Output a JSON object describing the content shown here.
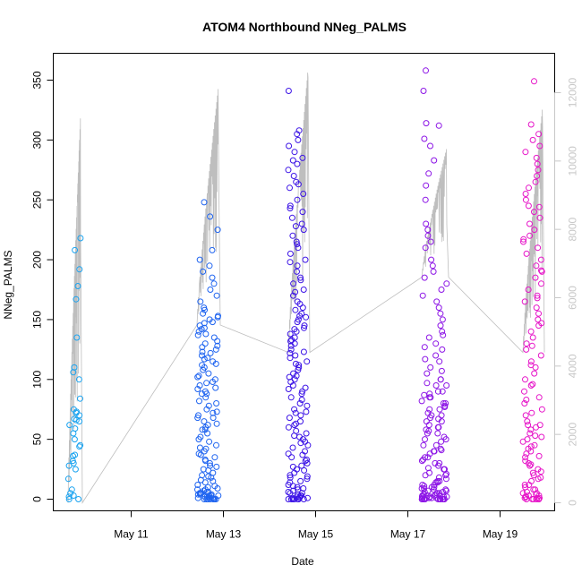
{
  "chart_data": {
    "type": "scatter",
    "title": "ATOM4 Northbound NNeg_PALMS",
    "xlabel": "Date",
    "ylabel": "NNeg_PALMS",
    "x_ticks": [
      "May 11",
      "May 13",
      "May 15",
      "May 17",
      "May 19"
    ],
    "xlim": [
      "May 9 16:30",
      "May 20 02:00"
    ],
    "ylim": [
      -10,
      370
    ],
    "y_ticks": [
      0,
      50,
      100,
      150,
      200,
      250,
      300,
      350
    ],
    "y2lim": [
      -150,
      13000
    ],
    "y2_ticks": [
      0,
      2000,
      4000,
      6000,
      8000,
      10000,
      12000
    ],
    "grid": false,
    "legend": "none",
    "series": [
      {
        "values_by_cluster": [
          {
            "date": "May 9",
            "color": "#1aa3f0",
            "points": [
              0,
              2,
              5,
              8,
              17,
              25,
              30,
              32,
              37,
              44,
              50,
              55,
              62,
              65,
              66,
              67,
              70,
              73,
              75,
              84,
              100,
              106,
              110,
              135,
              178,
              192,
              208,
              218,
              167,
              0,
              3,
              28,
              45,
              59,
              72,
              36
            ]
          },
          {
            "date": "May 12",
            "color": "#1f64f0",
            "points": [
              0,
              0,
              0,
              0,
              0,
              1,
              1,
              2,
              2,
              3,
              3,
              4,
              4,
              5,
              5,
              6,
              7,
              8,
              9,
              10,
              12,
              14,
              16,
              18,
              20,
              22,
              25,
              27,
              30,
              32,
              35,
              37,
              40,
              42,
              45,
              48,
              50,
              52,
              55,
              58,
              60,
              62,
              65,
              68,
              70,
              72,
              75,
              78,
              80,
              82,
              85,
              88,
              90,
              92,
              95,
              98,
              100,
              102,
              105,
              108,
              110,
              112,
              115,
              118,
              120,
              122,
              125,
              128,
              130,
              132,
              135,
              138,
              140,
              142,
              145,
              148,
              150,
              152,
              155,
              158,
              160,
              165,
              170,
              175,
              180,
              185,
              190,
              195,
              200,
              208,
              225,
              236,
              248,
              0,
              1,
              3,
              5,
              8,
              11,
              15,
              19,
              24,
              28,
              33,
              38,
              43,
              58,
              63,
              68,
              73,
              88,
              93,
              97,
              103,
              113,
              117,
              123,
              127,
              137,
              143,
              147,
              153,
              0,
              0,
              2,
              4,
              6
            ]
          },
          {
            "date": "May 14",
            "color": "#3c14e6",
            "points": [
              0,
              0,
              0,
              0,
              0,
              1,
              1,
              2,
              3,
              4,
              5,
              6,
              8,
              10,
              12,
              15,
              18,
              20,
              22,
              25,
              28,
              30,
              32,
              35,
              38,
              40,
              45,
              48,
              50,
              52,
              55,
              60,
              62,
              65,
              68,
              70,
              72,
              75,
              78,
              80,
              85,
              88,
              90,
              92,
              95,
              98,
              100,
              102,
              105,
              108,
              110,
              112,
              115,
              118,
              120,
              122,
              125,
              128,
              130,
              132,
              135,
              138,
              140,
              142,
              145,
              148,
              150,
              152,
              155,
              158,
              160,
              165,
              170,
              175,
              180,
              185,
              190,
              195,
              200,
              205,
              210,
              215,
              220,
              225,
              230,
              235,
              240,
              245,
              250,
              255,
              260,
              265,
              270,
              275,
              280,
              285,
              290,
              295,
              300,
              305,
              308,
              341,
              0,
              2,
              5,
              9,
              14,
              19,
              24,
              33,
              43,
              53,
              63,
              73,
              83,
              93,
              103,
              113,
              123,
              133,
              143,
              153,
              163,
              173,
              183,
              198,
              213,
              228,
              243,
              263,
              283,
              0,
              1,
              3,
              7,
              11,
              17,
              27,
              37,
              47,
              57
            ]
          },
          {
            "date": "May 17",
            "color": "#8c14e6",
            "points": [
              0,
              0,
              0,
              0,
              0,
              0,
              0,
              0,
              1,
              1,
              1,
              2,
              2,
              3,
              3,
              4,
              5,
              6,
              7,
              8,
              9,
              10,
              12,
              14,
              15,
              18,
              20,
              22,
              25,
              28,
              30,
              32,
              35,
              38,
              40,
              42,
              45,
              48,
              50,
              52,
              55,
              58,
              60,
              62,
              65,
              68,
              70,
              72,
              75,
              78,
              80,
              82,
              85,
              88,
              90,
              95,
              100,
              105,
              110,
              115,
              120,
              125,
              130,
              135,
              140,
              145,
              150,
              155,
              160,
              165,
              170,
              175,
              180,
              185,
              190,
              195,
              200,
              210,
              215,
              220,
              225,
              230,
              250,
              262,
              272,
              283,
              295,
              301,
              312,
              314,
              341,
              358,
              0,
              1,
              2,
              3,
              4,
              5,
              6,
              8,
              10,
              12,
              15,
              20,
              25,
              30,
              35,
              40,
              45,
              50,
              55,
              60,
              65,
              70,
              75,
              80,
              85,
              90,
              95,
              100,
              0,
              0,
              1,
              2,
              3,
              5,
              7,
              9,
              11,
              14,
              17,
              21,
              26,
              33,
              41,
              57,
              67,
              77,
              87,
              97,
              107,
              117,
              127,
              137
            ]
          },
          {
            "date": "May 19",
            "color": "#e614c8",
            "points": [
              0,
              0,
              0,
              0,
              0,
              1,
              1,
              2,
              2,
              3,
              4,
              5,
              6,
              8,
              10,
              12,
              15,
              18,
              20,
              22,
              25,
              28,
              30,
              32,
              35,
              38,
              40,
              42,
              45,
              48,
              50,
              52,
              55,
              58,
              60,
              62,
              65,
              70,
              75,
              80,
              85,
              90,
              95,
              100,
              105,
              110,
              115,
              120,
              125,
              130,
              135,
              140,
              145,
              150,
              155,
              160,
              165,
              170,
              175,
              180,
              185,
              190,
              195,
              200,
              205,
              210,
              215,
              220,
              225,
              230,
              235,
              240,
              245,
              250,
              255,
              260,
              265,
              270,
              275,
              280,
              285,
              290,
              295,
              300,
              305,
              313,
              349,
              0,
              1,
              3,
              5,
              8,
              12,
              17,
              23,
              29,
              36,
              44,
              53,
              62,
              72,
              83,
              96,
              112,
              128,
              147,
              168,
              191,
              217,
              244
            ]
          }
        ]
      }
    ],
    "secondary_series": {
      "color": "#bebebe",
      "description_values": "cumulative line (right axis 0-12000)",
      "clusters": [
        {
          "start": 0,
          "peak": 11400
        },
        {
          "start": 5200,
          "peak": 12200
        },
        {
          "start": 4400,
          "peak": 12700
        },
        {
          "start": 6600,
          "peak": 10400
        },
        {
          "start": 4400,
          "peak": 11600
        }
      ]
    }
  }
}
